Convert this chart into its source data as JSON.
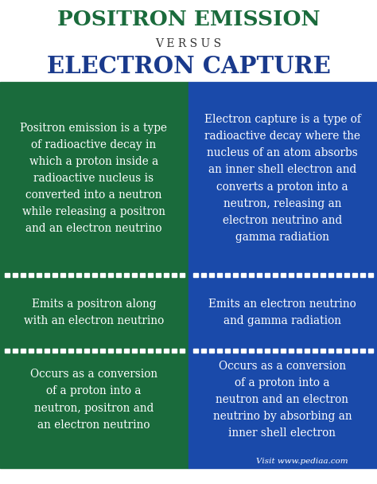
{
  "title1": "POSITRON EMISSION",
  "versus": "V E R S U S",
  "title2": "ELECTRON CAPTURE",
  "title1_color": "#1a6b3c",
  "versus_color": "#333333",
  "title2_color": "#1a3a8c",
  "left_bg": "#1a6b3c",
  "right_bg": "#1a4aaa",
  "text_color": "#ffffff",
  "header_bg": "#ffffff",
  "dot_color": "#ffffff",
  "left_texts": [
    "Positron emission is a type\nof radioactive decay in\nwhich a proton inside a\nradioactive nucleus is\nconverted into a neutron\nwhile releasing a positron\nand an electron neutrino",
    "Emits a positron along\nwith an electron neutrino",
    "Occurs as a conversion\nof a proton into a\nneutron, positron and\nan electron neutrino"
  ],
  "right_texts": [
    "Electron capture is a type of\nradioactive decay where the\nnucleus of an atom absorbs\nan inner shell electron and\nconverts a proton into a\nneutron, releasing an\nelectron neutrino and\ngamma radiation",
    "Emits an electron neutrino\nand gamma radiation",
    "Occurs as a conversion\nof a proton into a\nneutron and an electron\nneutrino by absorbing an\ninner shell electron"
  ],
  "footer_text": "Visit www.pediaa.com",
  "figsize": [
    4.74,
    6.08
  ],
  "dpi": 100
}
